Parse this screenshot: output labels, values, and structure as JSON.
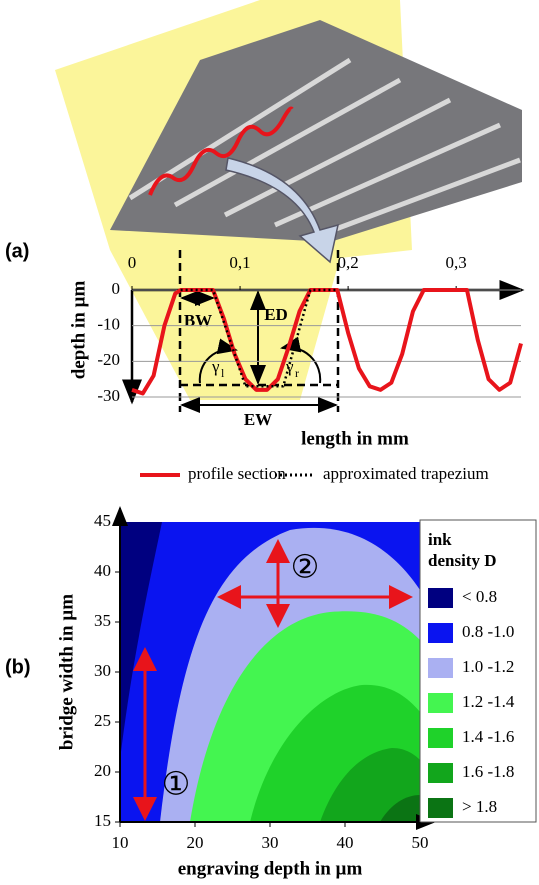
{
  "chart_data": [
    {
      "type": "line",
      "panel_label": "(a)",
      "xlabel": "length in mm",
      "ylabel": "depth in µm",
      "xlim": [
        0,
        0.36
      ],
      "ylim": [
        -30,
        0
      ],
      "xticks": [
        {
          "value": 0,
          "label": "0"
        },
        {
          "value": 0.1,
          "label": "0,1"
        },
        {
          "value": 0.2,
          "label": "0,2"
        },
        {
          "value": 0.3,
          "label": "0,3"
        }
      ],
      "yticks": [
        0,
        -10,
        -20,
        -30
      ],
      "grid": true,
      "series": [
        {
          "name": "profile section",
          "color": "#e8141b",
          "style": "solid",
          "x": [
            0,
            0.01,
            0.02,
            0.03,
            0.04,
            0.045,
            0.075,
            0.085,
            0.095,
            0.105,
            0.115,
            0.125,
            0.135,
            0.145,
            0.155,
            0.165,
            0.19,
            0.2,
            0.21,
            0.22,
            0.23,
            0.24,
            0.25,
            0.26,
            0.27,
            0.31,
            0.32,
            0.33,
            0.34,
            0.35,
            0.36
          ],
          "values": [
            -28,
            -29,
            -24,
            -10,
            -1,
            0,
            0,
            -8,
            -18,
            -25,
            -28,
            -28,
            -25,
            -16,
            -6,
            0,
            0,
            -12,
            -22,
            -27,
            -28,
            -26,
            -18,
            -6,
            0,
            0,
            -14,
            -25,
            -28,
            -26,
            -15
          ]
        },
        {
          "name": "approximated trapezium",
          "color": "#000000",
          "style": "dotted",
          "x": [
            0.045,
            0.075,
            0.105,
            0.14,
            0.165,
            0.19
          ],
          "values": [
            0,
            0,
            -27,
            -27,
            0,
            0
          ]
        }
      ],
      "annotations": {
        "bw": "BW",
        "ed": "ED",
        "ew": "EW",
        "gamma_l": {
          "symbol": "γ",
          "subscript": "l"
        },
        "gamma_r": {
          "symbol": "γ",
          "subscript": "r"
        }
      }
    },
    {
      "type": "contour",
      "panel_label": "(b)",
      "xlabel": "engraving depth in µm",
      "ylabel": "bridge width in µm",
      "xlim": [
        10,
        50
      ],
      "ylim": [
        15,
        45
      ],
      "xticks": [
        10,
        20,
        30,
        40,
        50
      ],
      "yticks": [
        15,
        20,
        25,
        30,
        35,
        40,
        45
      ],
      "legend_title": [
        "ink",
        "density D"
      ],
      "levels": [
        {
          "label": "< 0.8",
          "color": "#000080"
        },
        {
          "label": "0.8 -1.0",
          "color": "#0a14f0"
        },
        {
          "label": "1.0 -1.2",
          "color": "#aab0f2"
        },
        {
          "label": "1.2 -1.4",
          "color": "#44f550"
        },
        {
          "label": "1.4 -1.6",
          "color": "#1fd22a"
        },
        {
          "label": "1.6 -1.8",
          "color": "#12a61c"
        },
        {
          "label": "> 1.8",
          "color": "#0b7414"
        }
      ],
      "markers": [
        "①",
        "②"
      ]
    }
  ]
}
